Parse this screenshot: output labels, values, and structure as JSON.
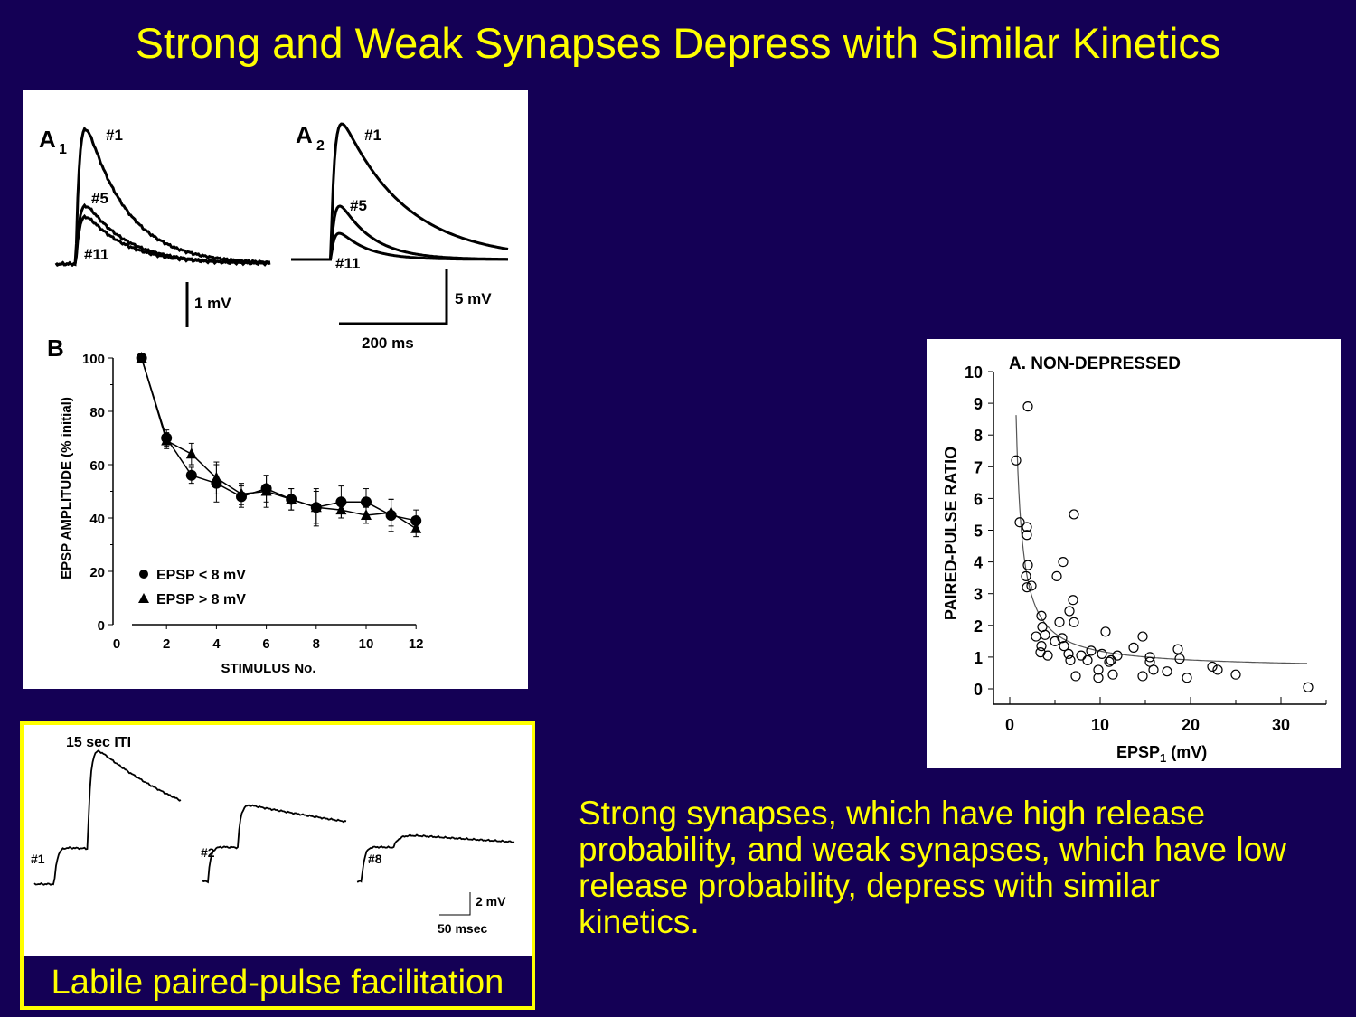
{
  "title": "Strong and Weak Synapses Depress with Similar Kinetics",
  "body_text": [
    "Strong synapses, which have high release",
    "probability, and weak synapses, which have low",
    "release probability, depress with similar",
    "kinetics."
  ],
  "panel_a": {
    "a1_label": "A",
    "a1_sub": "1",
    "a2_label": "A",
    "a2_sub": "2",
    "trace_labels": [
      "#1",
      "#5",
      "#11"
    ],
    "a1_scale": "1 mV",
    "a2_scale_v": "5 mV",
    "a2_scale_t": "200 ms"
  },
  "ppf": {
    "iti_label": "15 sec ITI",
    "trace_labels": [
      "#1",
      "#2",
      "#8"
    ],
    "scale_v": "2 mV",
    "scale_t": "50 msec",
    "caption": "Labile paired-pulse facilitation"
  },
  "colors": {
    "background": "#140055",
    "accent": "#ffff00"
  },
  "chart_data": [
    {
      "type": "line",
      "panel_label": "B",
      "xlabel": "STIMULUS No.",
      "ylabel": "EPSP AMPLITUDE (% initial)",
      "xlim": [
        0,
        12
      ],
      "ylim": [
        0,
        100
      ],
      "xticks": [
        "0",
        "2",
        "4",
        "6",
        "8",
        "10",
        "12"
      ],
      "yticks": [
        "0",
        "20",
        "40",
        "60",
        "80",
        "100"
      ],
      "legend_position": "bottom-left",
      "x": [
        1,
        2,
        3,
        4,
        5,
        6,
        7,
        8,
        9,
        10,
        11,
        12
      ],
      "series": [
        {
          "name": "EPSP < 8 mV",
          "marker": "circle",
          "values": [
            100,
            70,
            56,
            53,
            48,
            51,
            47,
            44,
            46,
            46,
            41,
            39
          ],
          "error": [
            0,
            3,
            3,
            7,
            4,
            5,
            4,
            7,
            6,
            5,
            6,
            4
          ]
        },
        {
          "name": "EPSP > 8 mV",
          "marker": "triangle",
          "values": [
            100,
            69,
            64,
            55,
            49,
            50,
            47,
            44,
            43,
            41,
            42,
            36
          ],
          "error": [
            0,
            3,
            4,
            6,
            4,
            6,
            4,
            6,
            3,
            3,
            5,
            3
          ]
        }
      ]
    },
    {
      "type": "scatter",
      "title": "A.  NON-DEPRESSED",
      "xlabel": "EPSP",
      "xlabel_sub": "1",
      "xlabel_unit": " (mV)",
      "ylabel": "PAIRED-PULSE RATIO",
      "xlim": [
        0,
        35
      ],
      "ylim": [
        0,
        10
      ],
      "xticks": [
        "0",
        "10",
        "20",
        "30"
      ],
      "yticks": [
        "0",
        "1",
        "2",
        "3",
        "4",
        "5",
        "6",
        "7",
        "8",
        "9",
        "10"
      ],
      "fit": {
        "form": "a + b/x",
        "a": 0.63,
        "b": 5.6,
        "x_range": [
          0.7,
          33
        ]
      },
      "points": [
        [
          0.7,
          7.2
        ],
        [
          1.1,
          5.25
        ],
        [
          1.9,
          5.1
        ],
        [
          1.9,
          4.85
        ],
        [
          2.0,
          3.9
        ],
        [
          1.8,
          3.55
        ],
        [
          1.9,
          3.2
        ],
        [
          2.4,
          3.25
        ],
        [
          2.0,
          8.9
        ],
        [
          7.1,
          5.5
        ],
        [
          5.9,
          4.0
        ],
        [
          5.2,
          3.55
        ],
        [
          7.0,
          2.8
        ],
        [
          6.6,
          2.45
        ],
        [
          7.1,
          2.1
        ],
        [
          5.5,
          2.1
        ],
        [
          3.5,
          2.3
        ],
        [
          3.6,
          1.95
        ],
        [
          3.9,
          1.7
        ],
        [
          2.9,
          1.65
        ],
        [
          3.5,
          1.35
        ],
        [
          3.4,
          1.15
        ],
        [
          4.2,
          1.05
        ],
        [
          5.0,
          1.5
        ],
        [
          5.8,
          1.6
        ],
        [
          6.0,
          1.35
        ],
        [
          6.5,
          1.1
        ],
        [
          6.7,
          0.9
        ],
        [
          7.3,
          0.4
        ],
        [
          7.9,
          1.05
        ],
        [
          8.6,
          0.9
        ],
        [
          9.0,
          1.2
        ],
        [
          9.8,
          0.6
        ],
        [
          9.8,
          0.35
        ],
        [
          10.2,
          1.1
        ],
        [
          10.6,
          1.8
        ],
        [
          11.0,
          0.85
        ],
        [
          11.2,
          0.9
        ],
        [
          11.4,
          0.45
        ],
        [
          11.9,
          1.05
        ],
        [
          13.7,
          1.3
        ],
        [
          14.7,
          1.65
        ],
        [
          14.7,
          0.4
        ],
        [
          15.5,
          1.0
        ],
        [
          15.5,
          0.85
        ],
        [
          15.9,
          0.6
        ],
        [
          17.4,
          0.55
        ],
        [
          18.6,
          1.25
        ],
        [
          18.8,
          0.95
        ],
        [
          19.6,
          0.35
        ],
        [
          22.4,
          0.7
        ],
        [
          23.0,
          0.6
        ],
        [
          25.0,
          0.45
        ],
        [
          33.0,
          0.05
        ]
      ]
    }
  ]
}
